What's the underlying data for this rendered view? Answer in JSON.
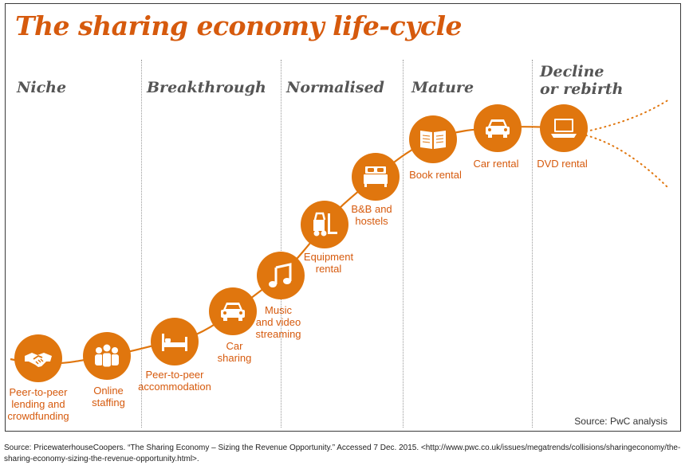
{
  "title": "The sharing economy life-cycle",
  "stages": [
    "Niche",
    "Breakthrough",
    "Normalised",
    "Mature",
    "Decline\nor rebirth"
  ],
  "nodes": [
    {
      "label": "Peer-to-peer\nlending and\ncrowdfunding",
      "icon": "handshake-icon"
    },
    {
      "label": "Online\nstaffing",
      "icon": "people-group-icon"
    },
    {
      "label": "Peer-to-peer\naccommodation",
      "icon": "bed-icon"
    },
    {
      "label": "Car\nsharing",
      "icon": "car-icon"
    },
    {
      "label": "Music\nand video\nstreaming",
      "icon": "music-note-icon"
    },
    {
      "label": "Equipment\nrental",
      "icon": "forklift-icon"
    },
    {
      "label": "B&B and\nhostels",
      "icon": "double-bed-icon"
    },
    {
      "label": "Book rental",
      "icon": "open-book-icon"
    },
    {
      "label": "Car rental",
      "icon": "car-icon"
    },
    {
      "label": "DVD rental",
      "icon": "laptop-icon"
    }
  ],
  "source_note": "Source: PwC analysis",
  "footer": "Source: PricewaterhouseCoopers. “The Sharing Economy – Sizing the Revenue Opportunity.” Accessed 7 Dec. 2015. <http://www.pwc.co.uk/issues/megatrends/collisions/sharingeconomy/the-sharing-economy-sizing-the-revenue-opportunity.html>.",
  "colors": {
    "accent": "#e0760e",
    "title": "#d65a0d",
    "stage_text": "#555555"
  }
}
